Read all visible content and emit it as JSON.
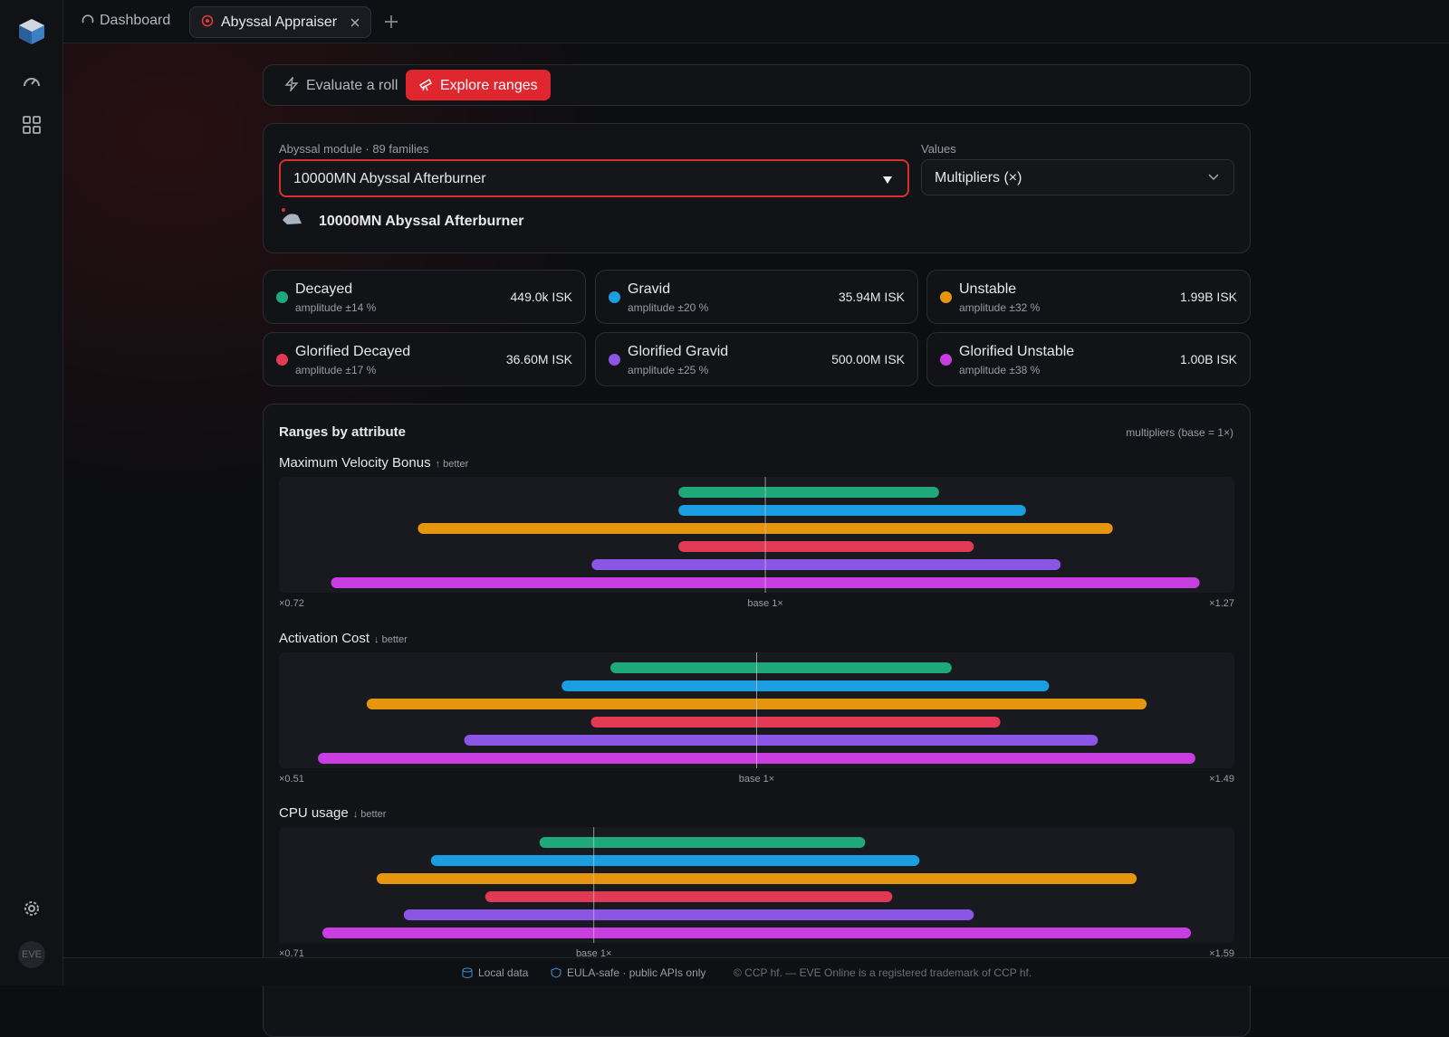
{
  "tabs": [
    "Dashboard",
    "Abyssal Appraiser"
  ],
  "modes": [
    "Evaluate a roll",
    "Explore ranges"
  ],
  "module_label": "Abyssal module · 89 families",
  "module_selected": "10000MN Abyssal Afterburner",
  "values_label": "Values",
  "values_selected": "Multipliers (×)",
  "module_name": "10000MN Abyssal Afterburner",
  "mutaplasmids": [
    {
      "name": "Decayed",
      "amplitude": "amplitude ±14 %",
      "price": "449.0k ISK",
      "color": "#1fa97a"
    },
    {
      "name": "Gravid",
      "amplitude": "amplitude ±20 %",
      "price": "35.94M ISK",
      "color": "#1a9ee0"
    },
    {
      "name": "Unstable",
      "amplitude": "amplitude ±32 %",
      "price": "1.99B ISK",
      "color": "#e5960e"
    },
    {
      "name": "Glorified Decayed",
      "amplitude": "amplitude ±17 %",
      "price": "36.60M ISK",
      "color": "#e23a55"
    },
    {
      "name": "Glorified Gravid",
      "amplitude": "amplitude ±25 %",
      "price": "500.00M ISK",
      "color": "#8b55e6"
    },
    {
      "name": "Glorified Unstable",
      "amplitude": "amplitude ±38 %",
      "price": "1.00B ISK",
      "color": "#c93ee0"
    }
  ],
  "ranges": {
    "title": "Ranges by attribute",
    "note": "multipliers (base = 1×)",
    "attributes": [
      {
        "name": "Maximum Velocity Bonus",
        "direction": "↑ better",
        "xlim": [
          0.72,
          1.27
        ],
        "xticks": [
          {
            "value": 0.72,
            "label": "×0.72"
          },
          {
            "value": 1,
            "label": "base 1×"
          },
          {
            "value": 1.27,
            "label": "×1.27"
          }
        ],
        "bars": [
          [
            0.95,
            1.1
          ],
          [
            0.95,
            1.15
          ],
          [
            0.8,
            1.2
          ],
          [
            0.95,
            1.12
          ],
          [
            0.9,
            1.17
          ],
          [
            0.75,
            1.25
          ]
        ]
      },
      {
        "name": "Activation Cost",
        "direction": "↓ better",
        "xlim": [
          0.51,
          1.49
        ],
        "xticks": [
          {
            "value": 0.51,
            "label": "×0.51"
          },
          {
            "value": 1,
            "label": "base 1×"
          },
          {
            "value": 1.49,
            "label": "×1.49"
          }
        ],
        "bars": [
          [
            0.85,
            1.2
          ],
          [
            0.8,
            1.3
          ],
          [
            0.6,
            1.4
          ],
          [
            0.83,
            1.25
          ],
          [
            0.7,
            1.35
          ],
          [
            0.55,
            1.45
          ]
        ]
      },
      {
        "name": "CPU usage",
        "direction": "↓ better",
        "xlim": [
          0.71,
          1.59
        ],
        "xticks": [
          {
            "value": 0.71,
            "label": "×0.71"
          },
          {
            "value": 1,
            "label": "base 1×"
          },
          {
            "value": 1.59,
            "label": "×1.59"
          }
        ],
        "bars": [
          [
            0.95,
            1.25
          ],
          [
            0.85,
            1.3
          ],
          [
            0.8,
            1.5
          ],
          [
            0.9,
            1.275
          ],
          [
            0.825,
            1.35
          ],
          [
            0.75,
            1.55
          ]
        ]
      }
    ]
  },
  "footer": [
    "Local data",
    "EULA-safe · public APIs only",
    "© CCP hf. — EVE Online is a registered trademark of CCP hf."
  ],
  "avatar": "EVE"
}
